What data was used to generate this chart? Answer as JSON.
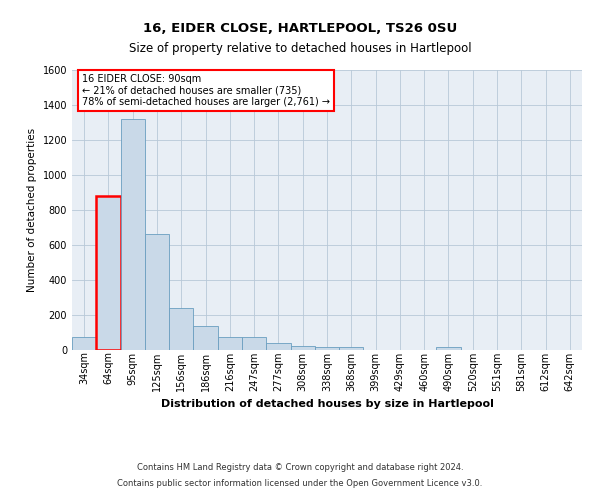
{
  "title": "16, EIDER CLOSE, HARTLEPOOL, TS26 0SU",
  "subtitle": "Size of property relative to detached houses in Hartlepool",
  "xlabel": "Distribution of detached houses by size in Hartlepool",
  "ylabel": "Number of detached properties",
  "footnote1": "Contains HM Land Registry data © Crown copyright and database right 2024.",
  "footnote2": "Contains public sector information licensed under the Open Government Licence v3.0.",
  "annotation_line1": "16 EIDER CLOSE: 90sqm",
  "annotation_line2": "← 21% of detached houses are smaller (735)",
  "annotation_line3": "78% of semi-detached houses are larger (2,761) →",
  "bar_color": "#c9d9e8",
  "bar_edge_color": "#6a9ec0",
  "highlight_bar_edge_color": "red",
  "background_color": "#e8eef5",
  "categories": [
    "34sqm",
    "64sqm",
    "95sqm",
    "125sqm",
    "156sqm",
    "186sqm",
    "216sqm",
    "247sqm",
    "277sqm",
    "308sqm",
    "338sqm",
    "368sqm",
    "399sqm",
    "429sqm",
    "460sqm",
    "490sqm",
    "520sqm",
    "551sqm",
    "581sqm",
    "612sqm",
    "642sqm"
  ],
  "values": [
    75,
    880,
    1320,
    665,
    240,
    140,
    75,
    75,
    40,
    25,
    15,
    15,
    0,
    0,
    0,
    20,
    0,
    0,
    0,
    0,
    0
  ],
  "highlight_index": 1,
  "ylim": [
    0,
    1600
  ],
  "yticks": [
    0,
    200,
    400,
    600,
    800,
    1000,
    1200,
    1400,
    1600
  ],
  "grid_color": "#b8c8d8",
  "title_fontsize": 9.5,
  "subtitle_fontsize": 8.5,
  "annotation_fontsize": 7.0,
  "ylabel_fontsize": 7.5,
  "xlabel_fontsize": 8.0,
  "tick_fontsize": 7.0,
  "footnote_fontsize": 6.0
}
